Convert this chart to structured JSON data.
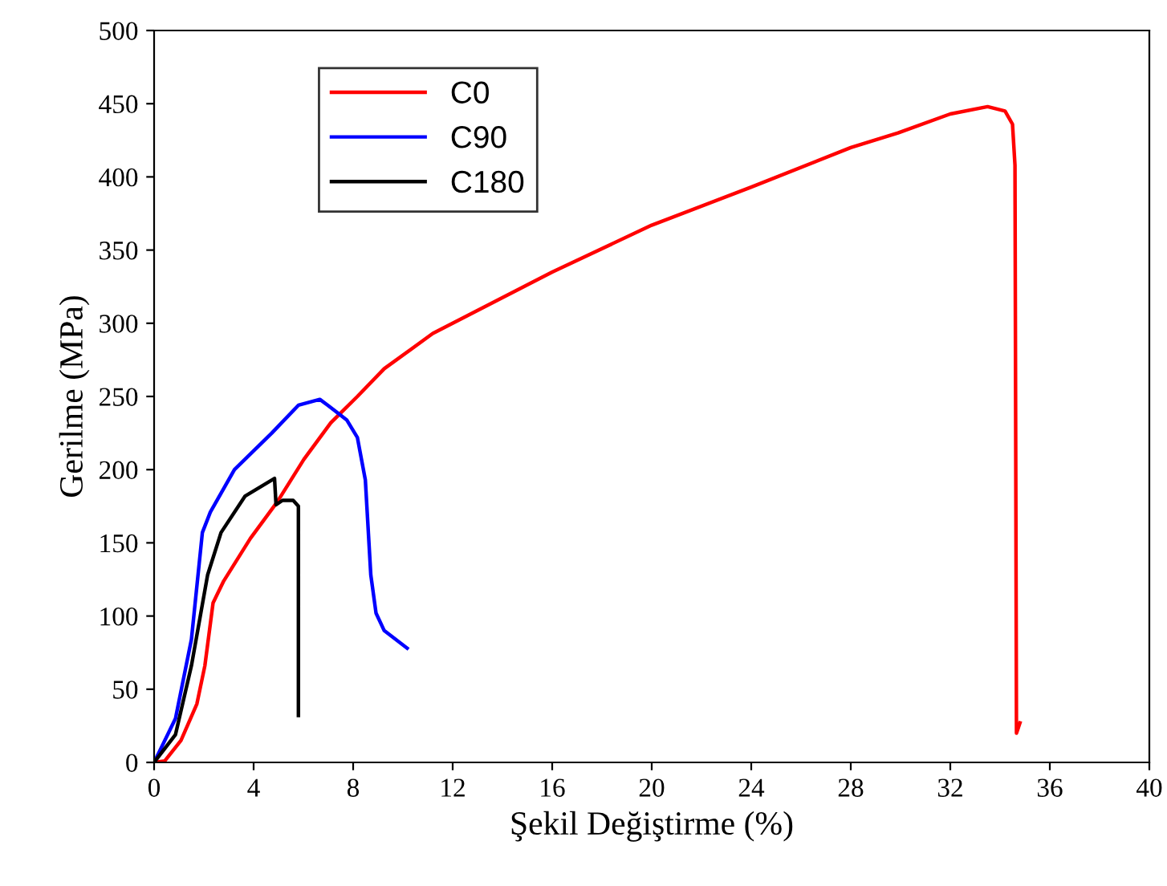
{
  "chart_data": {
    "type": "line",
    "xlabel": "Şekil Değiştirme (%)",
    "ylabel": "Gerilme (MPa)",
    "xlim": [
      0,
      40
    ],
    "xticks": [
      0,
      4,
      8,
      12,
      16,
      20,
      24,
      28,
      32,
      36,
      40
    ],
    "ylim": [
      0,
      500
    ],
    "yticks": [
      0,
      50,
      100,
      150,
      200,
      250,
      300,
      350,
      400,
      450,
      500
    ],
    "grid": false,
    "legend": "top left",
    "marker": "none",
    "line_style": "solid",
    "series": [
      {
        "name": "C0",
        "color": "#ff0000",
        "x": [
          0,
          0.43,
          1.08,
          1.72,
          2.04,
          2.37,
          2.8,
          3.87,
          4.95,
          6.02,
          7.1,
          8.17,
          9.25,
          11.2,
          12,
          16,
          20,
          24,
          28,
          29.9,
          32.0,
          33.5,
          34.2,
          34.5,
          34.6,
          34.66,
          34.8
        ],
        "values": [
          0,
          1,
          15,
          40,
          66,
          109,
          124,
          153,
          178,
          207,
          232,
          250,
          269,
          293,
          300,
          335,
          367,
          393,
          420,
          430,
          443,
          448,
          445,
          436,
          408,
          20,
          27
        ]
      },
      {
        "name": "C90",
        "color": "#0000ff",
        "x": [
          0,
          0.86,
          1.5,
          1.94,
          2.26,
          3.23,
          4.73,
          5.8,
          6.66,
          6.98,
          7.74,
          8.17,
          8.49,
          8.71,
          8.92,
          9.25,
          10.17
        ],
        "values": [
          0,
          30,
          84,
          157,
          171,
          200,
          225,
          244,
          248,
          244,
          234,
          222,
          193,
          128,
          102,
          90,
          78
        ]
      },
      {
        "name": "C180",
        "color": "#000000",
        "x": [
          0,
          0.86,
          1.5,
          2.15,
          2.69,
          3.66,
          4.84,
          4.9,
          5.16,
          5.59,
          5.8,
          5.8
        ],
        "values": [
          0,
          19,
          66,
          128,
          157,
          182,
          194,
          176,
          179,
          179,
          175,
          32
        ]
      }
    ]
  }
}
